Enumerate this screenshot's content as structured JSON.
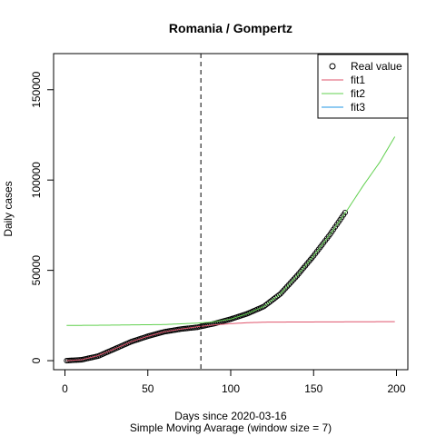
{
  "chart_data": {
    "type": "line",
    "title": "Romania / Gompertz",
    "xlabel": "Days since 2020-03-16",
    "xlabel2": "Simple Moving Avarage (window size = 7)",
    "ylabel": "Daily cases",
    "xlim": [
      0,
      200
    ],
    "ylim": [
      -5000,
      170000
    ],
    "x_ticks": [
      0,
      50,
      100,
      150,
      200
    ],
    "x_tick_labels": [
      "0",
      "50",
      "100",
      "150",
      "200"
    ],
    "y_ticks": [
      0,
      50000,
      100000,
      150000
    ],
    "y_tick_labels": [
      "0",
      "50000",
      "100000",
      "150000"
    ],
    "vline_x": 82,
    "grid": false,
    "legend_position": "top-right",
    "series": [
      {
        "name": "Real value",
        "style": "points",
        "color": "#000000",
        "x_start": 1,
        "x_end": 169,
        "anchors": [
          [
            1,
            0
          ],
          [
            10,
            500
          ],
          [
            20,
            2500
          ],
          [
            30,
            6500
          ],
          [
            40,
            10500
          ],
          [
            50,
            13500
          ],
          [
            60,
            16000
          ],
          [
            70,
            17500
          ],
          [
            80,
            18500
          ],
          [
            90,
            20500
          ],
          [
            100,
            23000
          ],
          [
            110,
            26000
          ],
          [
            120,
            30000
          ],
          [
            130,
            37000
          ],
          [
            140,
            47000
          ],
          [
            150,
            58000
          ],
          [
            160,
            70000
          ],
          [
            169,
            82000
          ]
        ]
      },
      {
        "name": "fit1",
        "style": "line",
        "color": "#DF536B",
        "anchors": [
          [
            1,
            0
          ],
          [
            10,
            500
          ],
          [
            20,
            2800
          ],
          [
            30,
            6500
          ],
          [
            40,
            10500
          ],
          [
            50,
            13500
          ],
          [
            60,
            16000
          ],
          [
            70,
            17500
          ],
          [
            80,
            18800
          ],
          [
            90,
            19800
          ],
          [
            100,
            20500
          ],
          [
            110,
            21000
          ],
          [
            120,
            21300
          ],
          [
            140,
            21400
          ],
          [
            170,
            21500
          ],
          [
            199,
            21600
          ]
        ]
      },
      {
        "name": "fit2",
        "style": "line",
        "color": "#61D04F",
        "anchors": [
          [
            1,
            19500
          ],
          [
            20,
            19600
          ],
          [
            40,
            19800
          ],
          [
            60,
            20000
          ],
          [
            80,
            20800
          ],
          [
            90,
            21500
          ],
          [
            100,
            23000
          ],
          [
            110,
            26000
          ],
          [
            120,
            30000
          ],
          [
            130,
            37000
          ],
          [
            140,
            47000
          ],
          [
            150,
            58000
          ],
          [
            160,
            70000
          ],
          [
            170,
            83000
          ],
          [
            180,
            97000
          ],
          [
            190,
            110000
          ],
          [
            199,
            124000
          ]
        ]
      },
      {
        "name": "fit3",
        "style": "line",
        "color": "#2297E6",
        "anchors": []
      }
    ]
  }
}
